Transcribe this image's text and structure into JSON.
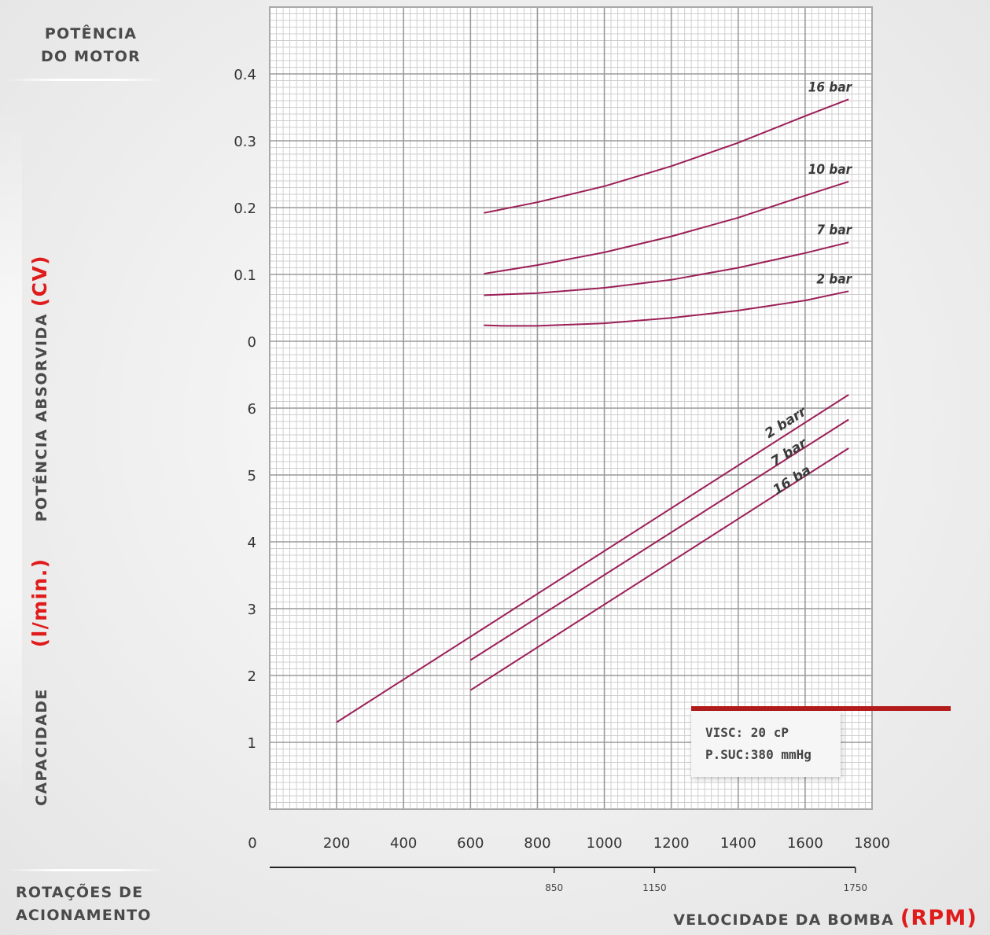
{
  "labels": {
    "motor_line1": "POTÊNCIA",
    "motor_line2": "DO MOTOR",
    "rotacoes_line1": "ROTAÇÕES DE",
    "rotacoes_line2": "ACIONAMENTO",
    "y_capacity": "CAPACIDADE",
    "y_capacity_unit": "(l/min.)",
    "y_power": "POTÊNCIA ABSORVIDA",
    "y_power_unit": "(CV)",
    "x_title": "VELOCIDADE DA BOMBA",
    "x_title_unit": "(RPM)",
    "info_visc": "VISC: 20 cP",
    "info_psuc": "P.SUC:380 mmHg"
  },
  "colors": {
    "curve": "#9c1f57",
    "grid_major": "#9a9a9a",
    "grid_minor": "#cfcfcf",
    "accent_red": "#e01b1b",
    "legend_bar": "#b41c1c"
  },
  "chart_data": {
    "type": "line",
    "x_ticks": [
      "0",
      "200",
      "400",
      "600",
      "800",
      "1000",
      "1200",
      "1400",
      "1600",
      "1800"
    ],
    "x_range": [
      0,
      1800
    ],
    "secondary_x_ticks": [
      {
        "label": "850",
        "x": 850
      },
      {
        "label": "1150",
        "x": 1150
      },
      {
        "label": "1750",
        "x": 1750
      }
    ],
    "power_panel": {
      "ylabel": "POTÊNCIA ABSORVIDA (CV)",
      "y_ticks": [
        "0",
        "0.1",
        "0.2",
        "0.3",
        "0.4"
      ],
      "y_range": [
        0,
        0.4
      ],
      "series": [
        {
          "name": "16 bar",
          "points": [
            [
              640,
              0.192
            ],
            [
              800,
              0.208
            ],
            [
              1000,
              0.232
            ],
            [
              1200,
              0.262
            ],
            [
              1400,
              0.297
            ],
            [
              1600,
              0.337
            ],
            [
              1730,
              0.362
            ]
          ]
        },
        {
          "name": "10 bar",
          "points": [
            [
              640,
              0.101
            ],
            [
              800,
              0.114
            ],
            [
              1000,
              0.133
            ],
            [
              1200,
              0.157
            ],
            [
              1400,
              0.185
            ],
            [
              1600,
              0.218
            ],
            [
              1730,
              0.239
            ]
          ]
        },
        {
          "name": "7 bar",
          "points": [
            [
              640,
              0.069
            ],
            [
              800,
              0.072
            ],
            [
              1000,
              0.08
            ],
            [
              1200,
              0.092
            ],
            [
              1400,
              0.11
            ],
            [
              1600,
              0.132
            ],
            [
              1730,
              0.148
            ]
          ]
        },
        {
          "name": "2 bar",
          "points": [
            [
              640,
              0.024
            ],
            [
              700,
              0.023
            ],
            [
              800,
              0.023
            ],
            [
              1000,
              0.027
            ],
            [
              1200,
              0.035
            ],
            [
              1400,
              0.046
            ],
            [
              1600,
              0.061
            ],
            [
              1730,
              0.075
            ]
          ]
        }
      ]
    },
    "capacity_panel": {
      "ylabel": "CAPACIDADE (l/min.)",
      "y_ticks": [
        "1",
        "2",
        "3",
        "4",
        "5",
        "6"
      ],
      "y_range": [
        0,
        7
      ],
      "series": [
        {
          "name": "2 barr",
          "points": [
            [
              200,
              1.3
            ],
            [
              1730,
              6.2
            ]
          ]
        },
        {
          "name": "7 bar",
          "points": [
            [
              600,
              2.23
            ],
            [
              1730,
              5.83
            ]
          ]
        },
        {
          "name": "16 ba",
          "points": [
            [
              600,
              1.78
            ],
            [
              1730,
              5.4
            ]
          ]
        }
      ]
    }
  }
}
